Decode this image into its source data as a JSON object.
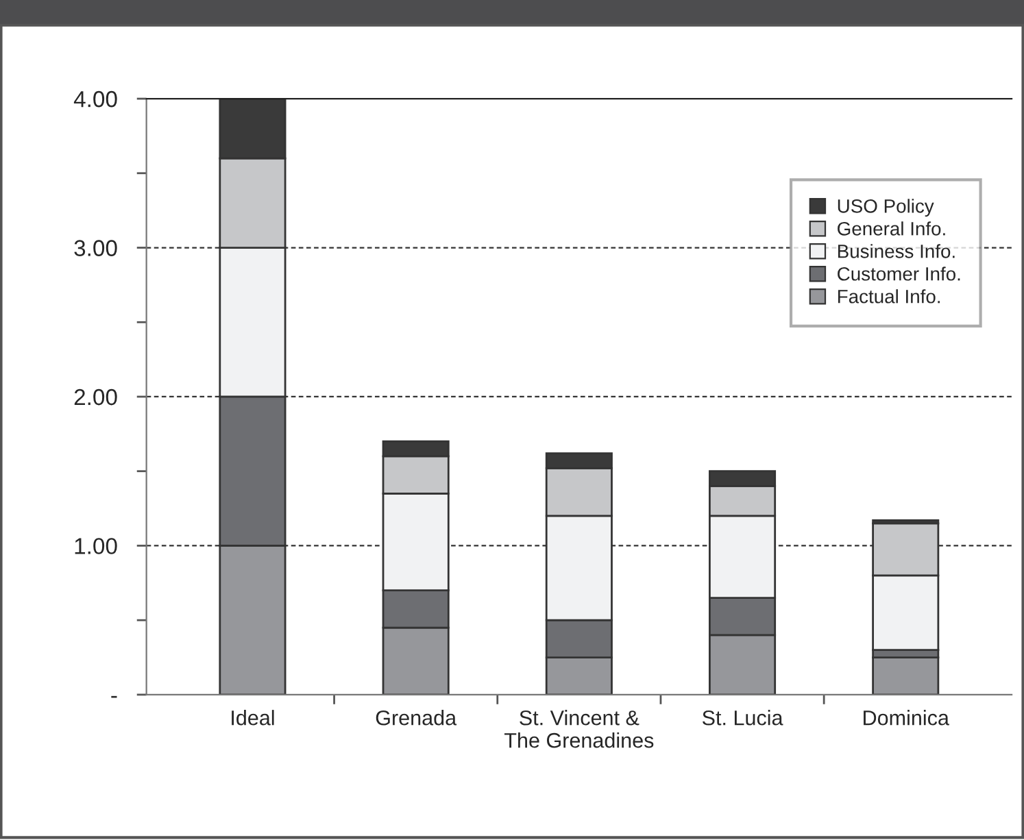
{
  "chart_data": {
    "type": "bar",
    "stacked": true,
    "categories": [
      "Ideal",
      "Grenada",
      "St. Vincent &\nThe Grenadines",
      "St. Lucia",
      "Dominica"
    ],
    "series": [
      {
        "name": "Factual Info.",
        "color": "#96979b",
        "values": [
          1.0,
          0.45,
          0.25,
          0.4,
          0.25
        ]
      },
      {
        "name": "Customer Info.",
        "color": "#6d6e72",
        "values": [
          1.0,
          0.25,
          0.25,
          0.25,
          0.05
        ]
      },
      {
        "name": "Business Info.",
        "color": "#f1f2f3",
        "values": [
          1.0,
          0.65,
          0.7,
          0.55,
          0.5
        ]
      },
      {
        "name": "General Info.",
        "color": "#c6c7c9",
        "values": [
          0.6,
          0.25,
          0.32,
          0.2,
          0.35
        ]
      },
      {
        "name": "USO Policy",
        "color": "#3a3a3a",
        "values": [
          0.4,
          0.1,
          0.1,
          0.1,
          0.02
        ]
      }
    ],
    "ylim": [
      0,
      4
    ],
    "yticks": [
      {
        "value": 0,
        "label": "-"
      },
      {
        "value": 0.5,
        "label": null
      },
      {
        "value": 1,
        "label": "1.00"
      },
      {
        "value": 1.5,
        "label": null
      },
      {
        "value": 2,
        "label": "2.00"
      },
      {
        "value": 2.5,
        "label": null
      },
      {
        "value": 3,
        "label": "3.00"
      },
      {
        "value": 3.5,
        "label": null
      },
      {
        "value": 4,
        "label": "4.00"
      }
    ],
    "grid": "y",
    "line_style": "dashed",
    "legend": "top right"
  }
}
